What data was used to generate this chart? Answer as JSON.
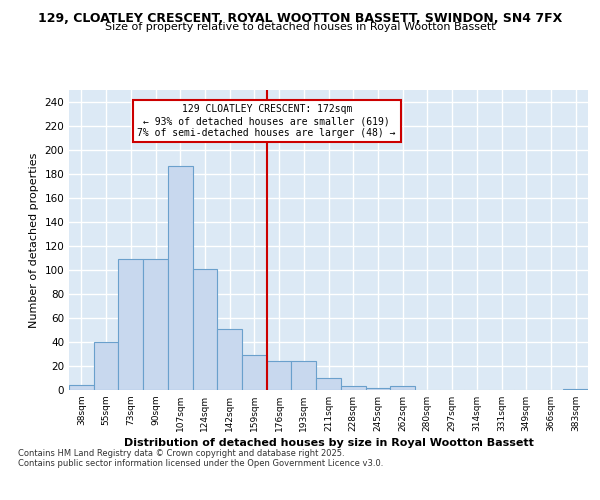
{
  "title1": "129, CLOATLEY CRESCENT, ROYAL WOOTTON BASSETT, SWINDON, SN4 7FX",
  "title2": "Size of property relative to detached houses in Royal Wootton Bassett",
  "xlabel": "Distribution of detached houses by size in Royal Wootton Bassett",
  "ylabel": "Number of detached properties",
  "footnote1": "Contains HM Land Registry data © Crown copyright and database right 2025.",
  "footnote2": "Contains public sector information licensed under the Open Government Licence v3.0.",
  "bin_labels": [
    "38sqm",
    "55sqm",
    "73sqm",
    "90sqm",
    "107sqm",
    "124sqm",
    "142sqm",
    "159sqm",
    "176sqm",
    "193sqm",
    "211sqm",
    "228sqm",
    "245sqm",
    "262sqm",
    "280sqm",
    "297sqm",
    "314sqm",
    "331sqm",
    "349sqm",
    "366sqm",
    "383sqm"
  ],
  "bar_heights": [
    4,
    40,
    109,
    109,
    187,
    101,
    51,
    29,
    24,
    24,
    10,
    3,
    2,
    3,
    0,
    0,
    0,
    0,
    0,
    0,
    1
  ],
  "bar_color": "#c8d8ee",
  "bar_edge_color": "#6aa0cc",
  "vline_x_index": 8,
  "vline_color": "#cc0000",
  "annotation_title": "129 CLOATLEY CRESCENT: 172sqm",
  "annotation_line1": "← 93% of detached houses are smaller (619)",
  "annotation_line2": "7% of semi-detached houses are larger (48) →",
  "annotation_box_edge": "#cc0000",
  "ylim": [
    0,
    250
  ],
  "yticks": [
    0,
    20,
    40,
    60,
    80,
    100,
    120,
    140,
    160,
    180,
    200,
    220,
    240
  ],
  "background_color": "#dce9f5",
  "grid_color": "#ffffff",
  "fig_background": "#ffffff"
}
